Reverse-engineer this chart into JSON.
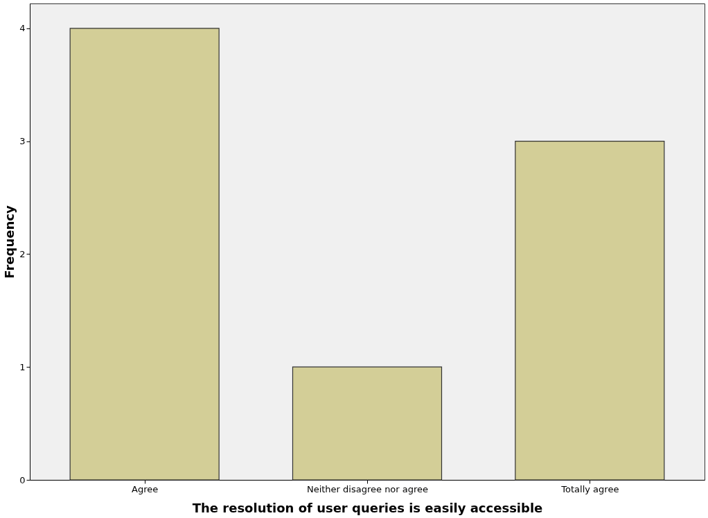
{
  "chart_data": {
    "type": "bar",
    "xlabel": "The resolution of user queries is easily accessible",
    "ylabel": "Frequency",
    "categories": [
      "Agree",
      "Neither disagree nor agree",
      "Totally agree"
    ],
    "values": [
      4,
      1,
      3
    ],
    "color": "#d3ce97",
    "ylim": [
      0,
      4.22
    ],
    "yticks": [
      0,
      1,
      2,
      3,
      4
    ],
    "grid": false
  }
}
